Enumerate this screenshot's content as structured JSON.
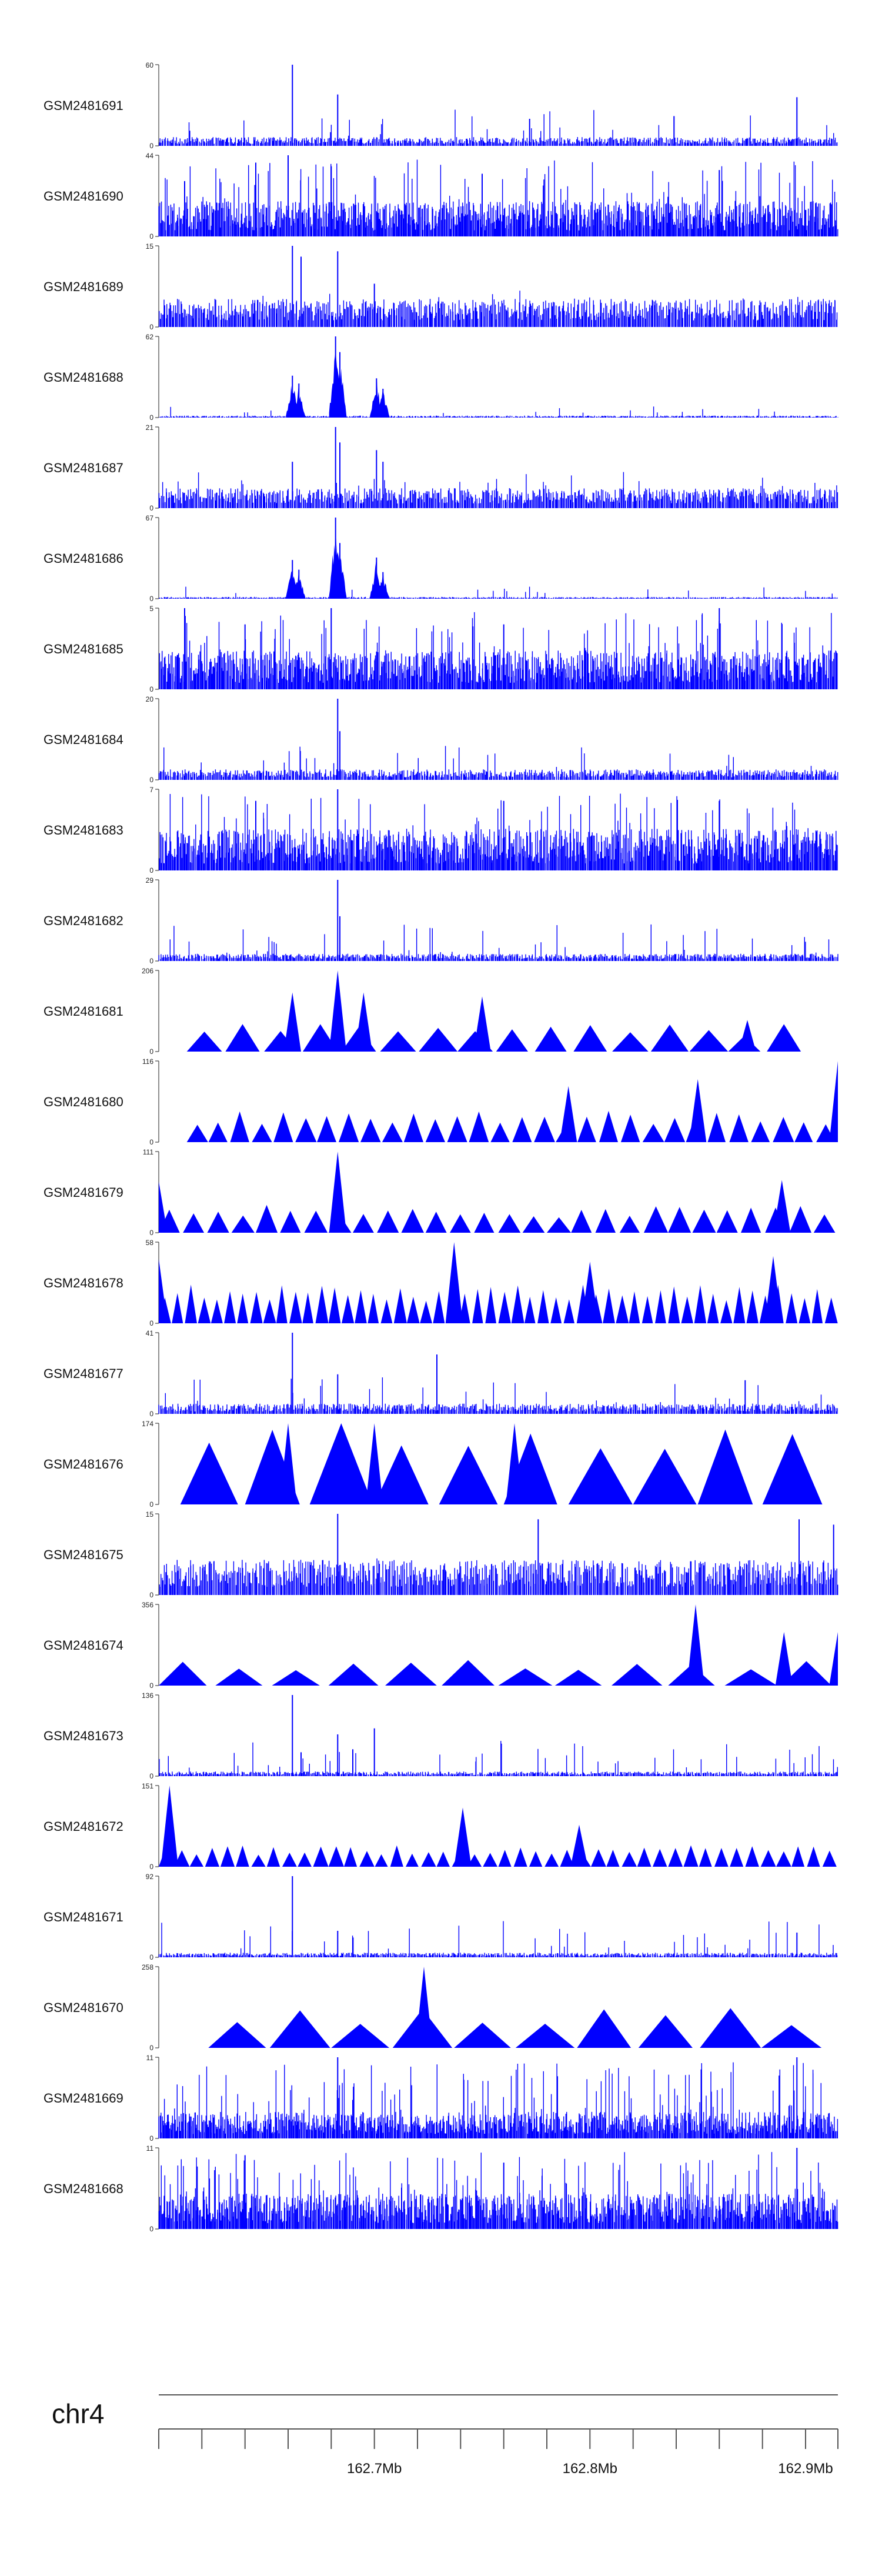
{
  "chart_data": {
    "type": "area",
    "title": "",
    "chromosome": "chr4",
    "xlabel": "",
    "ylabel": "",
    "x_range": [
      162.6,
      162.915
    ],
    "x_unit": "Mb",
    "x_ticks": [
      162.62,
      162.64,
      162.66,
      162.68,
      162.7,
      162.72,
      162.74,
      162.76,
      162.78,
      162.8,
      162.82,
      162.84,
      162.86,
      162.88,
      162.9
    ],
    "x_tick_labels": [
      {
        "pos": 162.7,
        "label": "162.7Mb"
      },
      {
        "pos": 162.8,
        "label": "162.8Mb"
      },
      {
        "pos": 162.9,
        "label": "162.9Mb"
      }
    ],
    "fill_color": "#0000ff",
    "grid": false,
    "legend": "none",
    "series": [
      {
        "name": "GSM2481691",
        "ymax": 60,
        "ymin": 0,
        "style": "spiky",
        "peaks": [
          {
            "x": 162.662,
            "y": 60
          },
          {
            "x": 162.683,
            "y": 38
          },
          {
            "x": 162.772,
            "y": 20
          },
          {
            "x": 162.839,
            "y": 22
          },
          {
            "x": 162.896,
            "y": 36
          }
        ],
        "baseline": 5
      },
      {
        "name": "GSM2481690",
        "ymax": 44,
        "ymin": 0,
        "style": "dense",
        "peaks": [
          {
            "x": 162.612,
            "y": 30
          },
          {
            "x": 162.645,
            "y": 40
          },
          {
            "x": 162.66,
            "y": 44
          },
          {
            "x": 162.68,
            "y": 38
          },
          {
            "x": 162.75,
            "y": 34
          },
          {
            "x": 162.86,
            "y": 36
          }
        ],
        "baseline": 16
      },
      {
        "name": "GSM2481689",
        "ymax": 15,
        "ymin": 0,
        "style": "spiky",
        "peaks": [
          {
            "x": 162.662,
            "y": 15
          },
          {
            "x": 162.666,
            "y": 13
          },
          {
            "x": 162.683,
            "y": 14
          },
          {
            "x": 162.7,
            "y": 8
          }
        ],
        "baseline": 4
      },
      {
        "name": "GSM2481688",
        "ymax": 62,
        "ymin": 0,
        "style": "peaks",
        "peaks": [
          {
            "x": 162.662,
            "y": 32
          },
          {
            "x": 162.665,
            "y": 26
          },
          {
            "x": 162.682,
            "y": 62
          },
          {
            "x": 162.684,
            "y": 50
          },
          {
            "x": 162.701,
            "y": 30
          },
          {
            "x": 162.704,
            "y": 22
          }
        ],
        "baseline": 1
      },
      {
        "name": "GSM2481687",
        "ymax": 21,
        "ymin": 0,
        "style": "spiky",
        "peaks": [
          {
            "x": 162.662,
            "y": 12
          },
          {
            "x": 162.682,
            "y": 21
          },
          {
            "x": 162.684,
            "y": 17
          },
          {
            "x": 162.701,
            "y": 15
          },
          {
            "x": 162.704,
            "y": 12
          }
        ],
        "baseline": 4
      },
      {
        "name": "GSM2481686",
        "ymax": 67,
        "ymin": 0,
        "style": "peaks",
        "peaks": [
          {
            "x": 162.662,
            "y": 32
          },
          {
            "x": 162.665,
            "y": 24
          },
          {
            "x": 162.682,
            "y": 67
          },
          {
            "x": 162.684,
            "y": 46
          },
          {
            "x": 162.701,
            "y": 34
          },
          {
            "x": 162.704,
            "y": 22
          }
        ],
        "baseline": 1
      },
      {
        "name": "GSM2481685",
        "ymax": 5,
        "ymin": 0,
        "style": "dense",
        "peaks": [
          {
            "x": 162.612,
            "y": 5
          },
          {
            "x": 162.64,
            "y": 4
          },
          {
            "x": 162.68,
            "y": 5
          },
          {
            "x": 162.76,
            "y": 4
          },
          {
            "x": 162.86,
            "y": 5
          }
        ],
        "baseline": 2
      },
      {
        "name": "GSM2481684",
        "ymax": 20,
        "ymin": 0,
        "style": "spiky",
        "peaks": [
          {
            "x": 162.683,
            "y": 20
          },
          {
            "x": 162.684,
            "y": 12
          }
        ],
        "baseline": 2
      },
      {
        "name": "GSM2481683",
        "ymax": 7,
        "ymin": 0,
        "style": "dense",
        "peaks": [
          {
            "x": 162.645,
            "y": 6
          },
          {
            "x": 162.683,
            "y": 7
          },
          {
            "x": 162.76,
            "y": 6
          },
          {
            "x": 162.86,
            "y": 6
          }
        ],
        "baseline": 3
      },
      {
        "name": "GSM2481682",
        "ymax": 29,
        "ymin": 0,
        "style": "spiky",
        "peaks": [
          {
            "x": 162.683,
            "y": 29
          },
          {
            "x": 162.684,
            "y": 16
          }
        ],
        "baseline": 2
      },
      {
        "name": "GSM2481681",
        "ymax": 206,
        "ymin": 0,
        "style": "triangles",
        "tri_start": 162.613,
        "tri_end": 162.9,
        "tri_count": 16,
        "peaks": [
          {
            "x": 162.683,
            "y": 206
          },
          {
            "x": 162.662,
            "y": 150
          },
          {
            "x": 162.695,
            "y": 150
          },
          {
            "x": 162.75,
            "y": 140
          },
          {
            "x": 162.873,
            "y": 80
          }
        ],
        "tri_height": 70
      },
      {
        "name": "GSM2481680",
        "ymax": 116,
        "ymin": 0,
        "style": "triangles",
        "tri_start": 162.613,
        "tri_end": 162.915,
        "tri_count": 30,
        "peaks": [
          {
            "x": 162.915,
            "y": 116
          },
          {
            "x": 162.79,
            "y": 80
          },
          {
            "x": 162.85,
            "y": 90
          }
        ],
        "tri_height": 45
      },
      {
        "name": "GSM2481679",
        "ymax": 111,
        "ymin": 0,
        "style": "triangles",
        "tri_start": 162.6,
        "tri_end": 162.915,
        "tri_count": 28,
        "peaks": [
          {
            "x": 162.683,
            "y": 111
          },
          {
            "x": 162.889,
            "y": 72
          },
          {
            "x": 162.6,
            "y": 70
          }
        ],
        "tri_height": 38
      },
      {
        "name": "GSM2481678",
        "ymax": 58,
        "ymin": 0,
        "style": "triangles",
        "tri_start": 162.6,
        "tri_end": 162.915,
        "tri_count": 52,
        "peaks": [
          {
            "x": 162.737,
            "y": 58
          },
          {
            "x": 162.6,
            "y": 46
          },
          {
            "x": 162.885,
            "y": 48
          },
          {
            "x": 162.8,
            "y": 44
          }
        ],
        "tri_height": 28
      },
      {
        "name": "GSM2481677",
        "ymax": 41,
        "ymin": 0,
        "style": "spiky",
        "peaks": [
          {
            "x": 162.662,
            "y": 41
          },
          {
            "x": 162.683,
            "y": 20
          },
          {
            "x": 162.729,
            "y": 30
          },
          {
            "x": 162.872,
            "y": 17
          }
        ],
        "baseline": 4
      },
      {
        "name": "GSM2481676",
        "ymax": 174,
        "ymin": 0,
        "style": "triangles",
        "tri_start": 162.61,
        "tri_end": 162.91,
        "tri_count": 10,
        "peaks": [
          {
            "x": 162.66,
            "y": 174
          },
          {
            "x": 162.7,
            "y": 174
          },
          {
            "x": 162.765,
            "y": 174
          }
        ],
        "tri_height": 174
      },
      {
        "name": "GSM2481675",
        "ymax": 15,
        "ymin": 0,
        "style": "spiky",
        "peaks": [
          {
            "x": 162.683,
            "y": 15
          },
          {
            "x": 162.776,
            "y": 14
          },
          {
            "x": 162.897,
            "y": 14
          },
          {
            "x": 162.913,
            "y": 13
          }
        ],
        "baseline": 5
      },
      {
        "name": "GSM2481674",
        "ymax": 356,
        "ymin": 0,
        "style": "triangles",
        "tri_start": 162.6,
        "tri_end": 162.915,
        "tri_count": 12,
        "peaks": [
          {
            "x": 162.849,
            "y": 356
          },
          {
            "x": 162.89,
            "y": 235
          },
          {
            "x": 162.915,
            "y": 235
          }
        ],
        "tri_height": 120
      },
      {
        "name": "GSM2481673",
        "ymax": 136,
        "ymin": 0,
        "style": "spiky",
        "peaks": [
          {
            "x": 162.662,
            "y": 136
          },
          {
            "x": 162.666,
            "y": 40
          },
          {
            "x": 162.683,
            "y": 70
          },
          {
            "x": 162.7,
            "y": 80
          },
          {
            "x": 162.69,
            "y": 45
          }
        ],
        "baseline": 6
      },
      {
        "name": "GSM2481672",
        "ymax": 151,
        "ymin": 0,
        "style": "triangles",
        "tri_start": 162.6,
        "tri_end": 162.915,
        "tri_count": 44,
        "peaks": [
          {
            "x": 162.605,
            "y": 151
          },
          {
            "x": 162.741,
            "y": 110
          },
          {
            "x": 162.795,
            "y": 78
          }
        ],
        "tri_height": 40
      },
      {
        "name": "GSM2481671",
        "ymax": 92,
        "ymin": 0,
        "style": "spiky",
        "peaks": [
          {
            "x": 162.662,
            "y": 92
          },
          {
            "x": 162.683,
            "y": 30
          },
          {
            "x": 162.896,
            "y": 28
          }
        ],
        "baseline": 4
      },
      {
        "name": "GSM2481670",
        "ymax": 258,
        "ymin": 0,
        "style": "triangles",
        "tri_start": 162.623,
        "tri_end": 162.908,
        "tri_count": 10,
        "peaks": [
          {
            "x": 162.723,
            "y": 258
          }
        ],
        "tri_height": 130
      },
      {
        "name": "GSM2481669",
        "ymax": 11,
        "ymin": 0,
        "style": "dense",
        "peaks": [
          {
            "x": 162.683,
            "y": 11
          },
          {
            "x": 162.896,
            "y": 11
          }
        ],
        "baseline": 3
      },
      {
        "name": "GSM2481668",
        "ymax": 11,
        "ymin": 0,
        "style": "dense",
        "peaks": [
          {
            "x": 162.896,
            "y": 11
          },
          {
            "x": 162.64,
            "y": 10
          },
          {
            "x": 162.76,
            "y": 9
          }
        ],
        "baseline": 4
      }
    ]
  }
}
